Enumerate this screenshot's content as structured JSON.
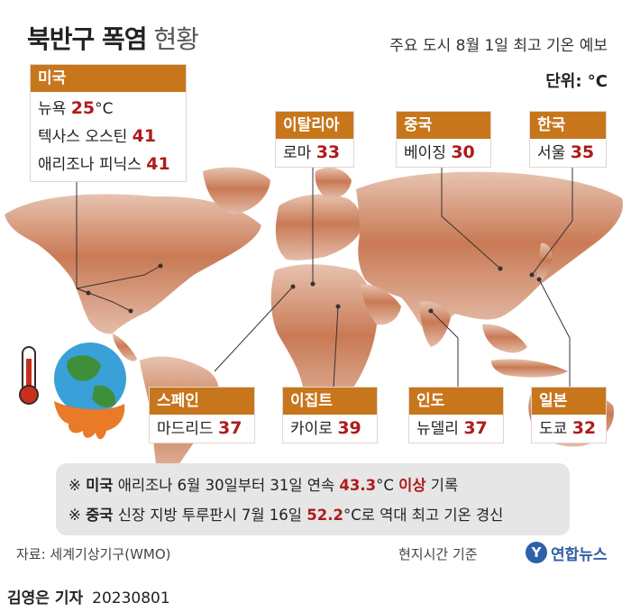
{
  "title": {
    "bold": "북반구 폭염",
    "light": "현황"
  },
  "subtitle": "주요 도시 8월 1일 최고 기온 예보",
  "unit": "단위: °C",
  "regions": {
    "usa": {
      "name": "미국",
      "cities": [
        {
          "name": "뉴욕",
          "temp": "25",
          "suffix": "°C"
        },
        {
          "name": "텍사스 오스틴",
          "temp": "41",
          "suffix": ""
        },
        {
          "name": "애리조나 피닉스",
          "temp": "41",
          "suffix": ""
        }
      ]
    },
    "italy": {
      "name": "이탈리아",
      "city": "로마",
      "temp": "33"
    },
    "china": {
      "name": "중국",
      "city": "베이징",
      "temp": "30"
    },
    "korea": {
      "name": "한국",
      "city": "서울",
      "temp": "35"
    },
    "spain": {
      "name": "스페인",
      "city": "마드리드",
      "temp": "37"
    },
    "egypt": {
      "name": "이집트",
      "city": "카이로",
      "temp": "39"
    },
    "india": {
      "name": "인도",
      "city": "뉴델리",
      "temp": "37"
    },
    "japan": {
      "name": "일본",
      "city": "도쿄",
      "temp": "32"
    }
  },
  "notes": [
    {
      "mark": "※",
      "country": "미국",
      "text1": "애리조나 6월 30일부터 31일 연속",
      "highlight": "43.3",
      "unit": "°C",
      "hl2": "이상",
      "text2": "기록"
    },
    {
      "mark": "※",
      "country": "중국",
      "text1": "신장 지방 투루판시 7월 16일",
      "highlight": "52.2",
      "unit": "°C",
      "hl2": "",
      "text2": "로 역대 최고 기온 경신"
    }
  ],
  "source": "자료: 세계기상기구(WMO)",
  "basis": "현지시간 기준",
  "logo": {
    "mark": "Y",
    "text": "연합뉴스"
  },
  "byline": {
    "reporter": "김영은 기자",
    "date": "20230801"
  }
}
